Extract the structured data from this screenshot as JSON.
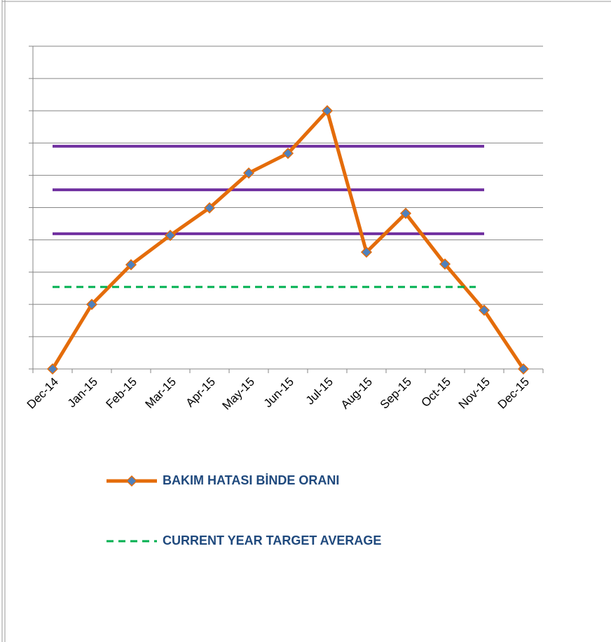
{
  "chart_data": {
    "type": "line",
    "categories": [
      "Dec-14",
      "Jan-15",
      "Feb-15",
      "Mar-15",
      "Apr-15",
      "May-15",
      "Jun-15",
      "Jul-15",
      "Aug-15",
      "Sep-15",
      "Oct-15",
      "Nov-15",
      "Dec-15"
    ],
    "series": [
      {
        "name": "BAKIM HATASI BİNDE ORANI",
        "color": "#e46c0a",
        "marker_color": "#4f81bd",
        "values": [
          0,
          2.0,
          3.23,
          4.14,
          4.99,
          6.07,
          6.68,
          8.0,
          3.62,
          4.82,
          3.25,
          1.82,
          0
        ]
      },
      {
        "name": "CURRENT YEAR TARGET AVERAGE",
        "color": "#00b050",
        "dashed": true,
        "values": [
          2.54,
          2.54,
          2.54,
          2.54,
          2.54,
          2.54,
          2.54,
          2.54,
          2.54,
          2.54,
          2.54,
          2.54,
          null
        ]
      }
    ],
    "reference_lines": [
      {
        "value": 6.9,
        "color": "#7030a0"
      },
      {
        "value": 5.55,
        "color": "#7030a0"
      },
      {
        "value": 4.19,
        "color": "#7030a0"
      }
    ],
    "ylim": [
      0,
      10
    ],
    "yticks": [
      0,
      1,
      2,
      3,
      4,
      5,
      6,
      7,
      8,
      9,
      10
    ],
    "grid": true
  }
}
